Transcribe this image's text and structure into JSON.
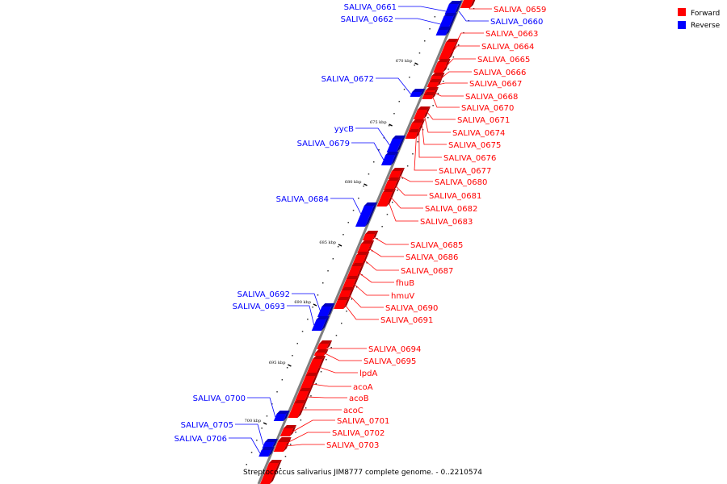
{
  "caption": "Streptococcus salivarius JIM8777 complete genome. - 0..2210574",
  "legend": [
    {
      "label": "Forward",
      "color": "#ff0000"
    },
    {
      "label": "Reverse",
      "color": "#0000ff"
    }
  ],
  "colors": {
    "forward": "#ff0000",
    "reverse": "#0000ff",
    "backbone": "#808080"
  },
  "ticks": [
    "670 kbp",
    "675 kbp",
    "680 kbp",
    "685 kbp",
    "690 kbp",
    "695 kbp",
    "700 kbp"
  ],
  "forward_genes": [
    "SALIVA_0659",
    "SALIVA_0663",
    "SALIVA_0664",
    "SALIVA_0665",
    "SALIVA_0666",
    "SALIVA_0667",
    "SALIVA_0668",
    "SALIVA_0670",
    "SALIVA_0671",
    "SALIVA_0674",
    "SALIVA_0675",
    "SALIVA_0676",
    "SALIVA_0677",
    "SALIVA_0680",
    "SALIVA_0681",
    "SALIVA_0682",
    "SALIVA_0683",
    "SALIVA_0685",
    "SALIVA_0686",
    "SALIVA_0687",
    "fhuB",
    "hmuV",
    "SALIVA_0690",
    "SALIVA_0691",
    "SALIVA_0694",
    "SALIVA_0695",
    "lpdA",
    "acoA",
    "acoB",
    "acoC",
    "SALIVA_0701",
    "SALIVA_0702",
    "SALIVA_0703"
  ],
  "reverse_genes": [
    "SALIVA_0660",
    "SALIVA_0661",
    "SALIVA_0662",
    "SALIVA_0672",
    "yycB",
    "SALIVA_0679",
    "SALIVA_0684",
    "SALIVA_0692",
    "SALIVA_0693",
    "SALIVA_0700",
    "SALIVA_0705",
    "SALIVA_0706"
  ]
}
